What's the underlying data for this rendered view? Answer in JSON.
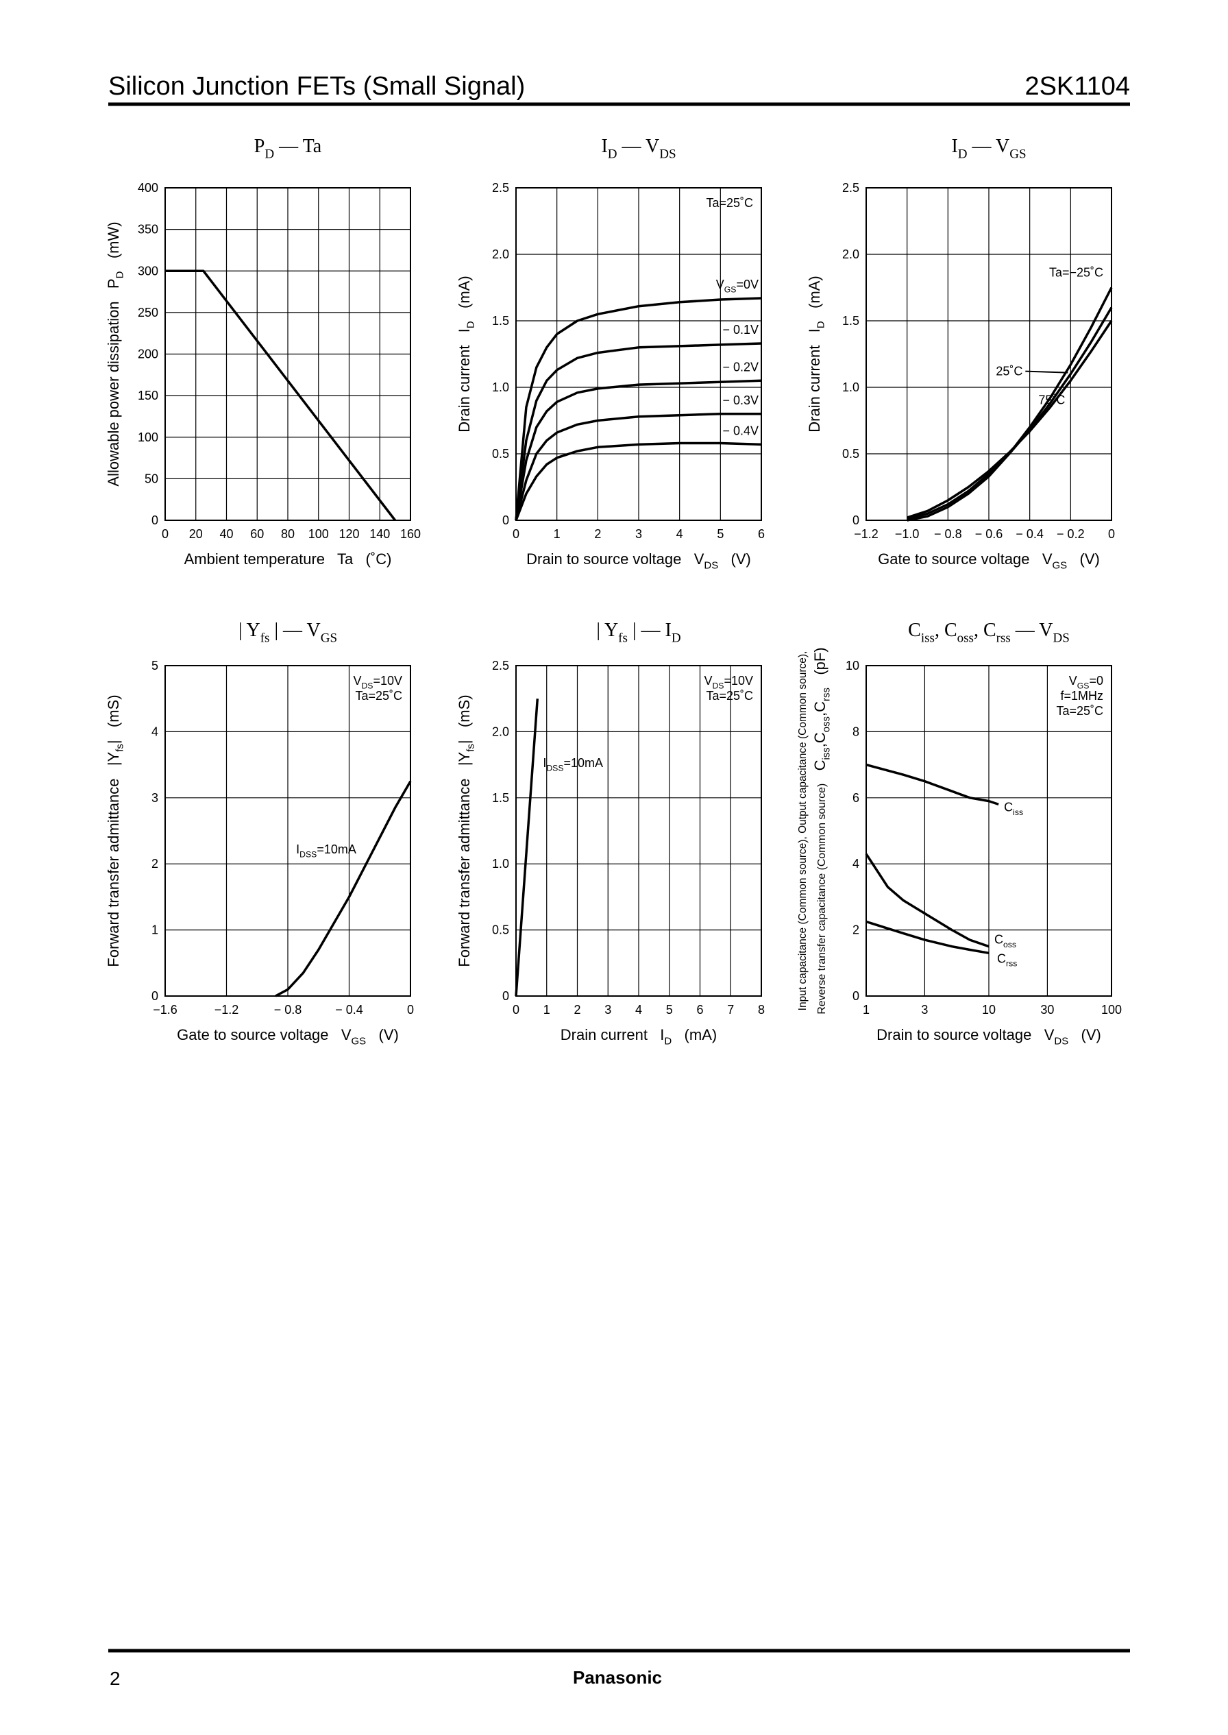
{
  "header": {
    "title": "Silicon Junction FETs (Small Signal)",
    "part_number": "2SK1104"
  },
  "footer": {
    "page": "2",
    "brand": "Panasonic"
  },
  "chart_data": [
    {
      "type": "line",
      "title": [
        {
          "text": "P"
        },
        {
          "text": "D",
          "sub": true
        },
        {
          "text": " — Ta"
        }
      ],
      "x_label": "Ambient temperature   Ta   (˚C)",
      "y_label": [
        {
          "text": "Allowable power dissipation   P"
        },
        {
          "text": "D",
          "sub": true
        },
        {
          "text": "   (mW)"
        }
      ],
      "x": [
        0,
        25,
        150
      ],
      "values": [
        300,
        300,
        0
      ],
      "color": "#000000",
      "xlim": [
        0,
        160
      ],
      "xticks": [
        0,
        20,
        40,
        60,
        80,
        100,
        120,
        140,
        160
      ],
      "ylim": [
        0,
        400
      ],
      "yticks": [
        0,
        50,
        100,
        150,
        200,
        250,
        300,
        350,
        400
      ],
      "grid": true
    },
    {
      "type": "line",
      "title": [
        {
          "text": "I"
        },
        {
          "text": "D",
          "sub": true
        },
        {
          "text": " — V"
        },
        {
          "text": "DS",
          "sub": true
        }
      ],
      "x_label": [
        {
          "text": "Drain to source voltage   V"
        },
        {
          "text": "DS",
          "sub": true
        },
        {
          "text": "   (V)"
        }
      ],
      "y_label": [
        {
          "text": "Drain current   I"
        },
        {
          "text": "D",
          "sub": true
        },
        {
          "text": "   (mA)"
        }
      ],
      "annotations": [
        "Ta=25˚C"
      ],
      "x": [
        0,
        0.25,
        0.5,
        0.75,
        1,
        1.5,
        2,
        3,
        4,
        5,
        6
      ],
      "series": [
        {
          "name": [
            {
              "text": "V"
            },
            {
              "text": "GS",
              "sub": true
            },
            {
              "text": "=0V"
            }
          ],
          "color": "#000000",
          "values": [
            0,
            0.85,
            1.15,
            1.3,
            1.4,
            1.5,
            1.55,
            1.61,
            1.64,
            1.66,
            1.67
          ]
        },
        {
          "name": "− 0.1V",
          "color": "#000000",
          "values": [
            0,
            0.6,
            0.9,
            1.05,
            1.13,
            1.22,
            1.26,
            1.3,
            1.31,
            1.32,
            1.33
          ]
        },
        {
          "name": "− 0.2V",
          "color": "#000000",
          "values": [
            0,
            0.45,
            0.7,
            0.82,
            0.89,
            0.96,
            0.99,
            1.02,
            1.03,
            1.04,
            1.05
          ]
        },
        {
          "name": "− 0.3V",
          "color": "#000000",
          "values": [
            0,
            0.3,
            0.5,
            0.6,
            0.66,
            0.72,
            0.75,
            0.78,
            0.79,
            0.8,
            0.8
          ]
        },
        {
          "name": "− 0.4V",
          "color": "#000000",
          "values": [
            0,
            0.2,
            0.33,
            0.42,
            0.47,
            0.52,
            0.55,
            0.57,
            0.58,
            0.58,
            0.57
          ]
        }
      ],
      "xlim": [
        0,
        6
      ],
      "xticks": [
        0,
        1,
        2,
        3,
        4,
        5,
        6
      ],
      "ylim": [
        0,
        2.5
      ],
      "yticks": [
        0,
        0.5,
        {
          "value": 1,
          "label": "1.0"
        },
        1.5,
        {
          "value": 2,
          "label": "2.0"
        },
        2.5
      ],
      "grid": true
    },
    {
      "type": "line",
      "title": [
        {
          "text": "I"
        },
        {
          "text": "D",
          "sub": true
        },
        {
          "text": " — V"
        },
        {
          "text": "GS",
          "sub": true
        }
      ],
      "x_label": [
        {
          "text": "Gate to source voltage   V"
        },
        {
          "text": "GS",
          "sub": true
        },
        {
          "text": "   (V)"
        }
      ],
      "y_label": [
        {
          "text": "Drain current   I"
        },
        {
          "text": "D",
          "sub": true
        },
        {
          "text": "   (mA)"
        }
      ],
      "x": [
        -1,
        -0.9,
        -0.8,
        -0.7,
        -0.6,
        -0.5,
        -0.4,
        -0.3,
        -0.2,
        -0.1,
        0
      ],
      "series": [
        {
          "name": "Ta=−25˚C",
          "color": "#000000",
          "values": [
            0,
            0.03,
            0.1,
            0.2,
            0.33,
            0.5,
            0.7,
            0.92,
            1.17,
            1.45,
            1.75
          ]
        },
        {
          "name": "25˚C",
          "color": "#000000",
          "values": [
            0.01,
            0.05,
            0.12,
            0.22,
            0.35,
            0.5,
            0.68,
            0.88,
            1.1,
            1.34,
            1.6
          ]
        },
        {
          "name": "75˚C",
          "color": "#000000",
          "values": [
            0.02,
            0.07,
            0.15,
            0.25,
            0.37,
            0.51,
            0.67,
            0.85,
            1.05,
            1.27,
            1.5
          ]
        }
      ],
      "xlim": [
        -1.2,
        0
      ],
      "xticks": [
        {
          "value": -1.2,
          "label": "−1.2"
        },
        {
          "value": -1,
          "label": "−1.0"
        },
        {
          "value": -0.8,
          "label": "− 0.8"
        },
        {
          "value": -0.6,
          "label": "− 0.6"
        },
        {
          "value": -0.4,
          "label": "− 0.4"
        },
        {
          "value": -0.2,
          "label": "− 0.2"
        },
        0
      ],
      "ylim": [
        0,
        2.5
      ],
      "yticks": [
        0,
        0.5,
        {
          "value": 1,
          "label": "1.0"
        },
        1.5,
        {
          "value": 2,
          "label": "2.0"
        },
        2.5
      ],
      "grid": true
    },
    {
      "type": "line",
      "title": [
        {
          "text": "| Y"
        },
        {
          "text": "fs",
          "sub": true
        },
        {
          "text": " | — V"
        },
        {
          "text": "GS",
          "sub": true
        }
      ],
      "x_label": [
        {
          "text": "Gate to source voltage   V"
        },
        {
          "text": "GS",
          "sub": true
        },
        {
          "text": "   (V)"
        }
      ],
      "y_label": [
        {
          "text": "Forward transfer admittance   |Y"
        },
        {
          "text": "fs",
          "sub": true
        },
        {
          "text": "|   (mS)"
        }
      ],
      "annotations": [
        [
          {
            "text": "V"
          },
          {
            "text": "DS",
            "sub": true
          },
          {
            "text": "=10V"
          }
        ],
        "Ta=25˚C"
      ],
      "x": [
        -0.88,
        -0.8,
        -0.7,
        -0.6,
        -0.5,
        -0.4,
        -0.3,
        -0.2,
        -0.1,
        0
      ],
      "series": [
        {
          "name": [
            {
              "text": "I"
            },
            {
              "text": "DSS",
              "sub": true
            },
            {
              "text": "=10mA"
            }
          ],
          "color": "#000000",
          "values": [
            0,
            0.1,
            0.35,
            0.7,
            1.1,
            1.5,
            1.95,
            2.4,
            2.85,
            3.25
          ]
        }
      ],
      "xlim": [
        -1.6,
        0
      ],
      "xticks": [
        {
          "value": -1.6,
          "label": "−1.6"
        },
        {
          "value": -1.2,
          "label": "−1.2"
        },
        {
          "value": -0.8,
          "label": "− 0.8"
        },
        {
          "value": -0.4,
          "label": "− 0.4"
        },
        0
      ],
      "ylim": [
        0,
        5
      ],
      "yticks": [
        0,
        1,
        2,
        3,
        4,
        5
      ],
      "grid": true
    },
    {
      "type": "line",
      "title": [
        {
          "text": "| Y"
        },
        {
          "text": "fs",
          "sub": true
        },
        {
          "text": " | — I"
        },
        {
          "text": "D",
          "sub": true
        }
      ],
      "x_label": [
        {
          "text": "Drain current   I"
        },
        {
          "text": "D",
          "sub": true
        },
        {
          "text": "   (mA)"
        }
      ],
      "y_label": [
        {
          "text": "Forward transfer admittance   |Y"
        },
        {
          "text": "fs",
          "sub": true
        },
        {
          "text": "|   (mS)"
        }
      ],
      "annotations": [
        [
          {
            "text": "V"
          },
          {
            "text": "DS",
            "sub": true
          },
          {
            "text": "=10V"
          }
        ],
        "Ta=25˚C"
      ],
      "x": [
        0,
        0.7
      ],
      "series": [
        {
          "name": [
            {
              "text": "I"
            },
            {
              "text": "DSS",
              "sub": true
            },
            {
              "text": "=10mA"
            }
          ],
          "color": "#000000",
          "values": [
            0,
            2.25
          ]
        }
      ],
      "xlim": [
        0,
        8
      ],
      "xticks": [
        0,
        1,
        2,
        3,
        4,
        5,
        6,
        7,
        8
      ],
      "ylim": [
        0,
        2.5
      ],
      "yticks": [
        0,
        0.5,
        {
          "value": 1,
          "label": "1.0"
        },
        1.5,
        {
          "value": 2,
          "label": "2.0"
        },
        2.5
      ],
      "grid": true
    },
    {
      "type": "line",
      "title": [
        {
          "text": "C"
        },
        {
          "text": "iss",
          "sub": true
        },
        {
          "text": ", C"
        },
        {
          "text": "oss",
          "sub": true
        },
        {
          "text": ", C"
        },
        {
          "text": "rss",
          "sub": true
        },
        {
          "text": " — V"
        },
        {
          "text": "DS",
          "sub": true
        }
      ],
      "x_label": [
        {
          "text": "Drain to source voltage   V"
        },
        {
          "text": "DS",
          "sub": true
        },
        {
          "text": "   (V)"
        }
      ],
      "y_label_note": "Input capacitance (Common source), Output capacitance (Common source),",
      "y_label": [
        {
          "text": "Reverse transfer capacitance (Common source)",
          "small": true
        },
        {
          "text": "   C"
        },
        {
          "text": "iss",
          "sub": true
        },
        {
          "text": ",C"
        },
        {
          "text": "oss",
          "sub": true
        },
        {
          "text": ",C"
        },
        {
          "text": "rss",
          "sub": true
        },
        {
          "text": "   (pF)"
        }
      ],
      "annotations": [
        [
          {
            "text": "V"
          },
          {
            "text": "GS",
            "sub": true
          },
          {
            "text": "=0"
          }
        ],
        "f=1MHz",
        "Ta=25˚C"
      ],
      "xscale": "log",
      "series": [
        {
          "name": [
            {
              "text": "C"
            },
            {
              "text": "iss",
              "sub": true
            }
          ],
          "color": "#000000",
          "x": [
            1,
            2,
            3,
            5,
            7,
            10,
            12
          ],
          "values": [
            7,
            6.7,
            6.5,
            6.2,
            6,
            5.9,
            5.8
          ]
        },
        {
          "name": [
            {
              "text": "C"
            },
            {
              "text": "oss",
              "sub": true
            }
          ],
          "color": "#000000",
          "x": [
            1,
            1.5,
            2,
            3,
            5,
            7,
            10
          ],
          "values": [
            4.3,
            3.3,
            2.9,
            2.5,
            2,
            1.7,
            1.5
          ]
        },
        {
          "name": [
            {
              "text": "C"
            },
            {
              "text": "rss",
              "sub": true
            }
          ],
          "color": "#000000",
          "x": [
            1,
            2,
            3,
            5,
            7,
            10
          ],
          "values": [
            2.25,
            1.9,
            1.7,
            1.5,
            1.4,
            1.3
          ]
        }
      ],
      "xlim": [
        1,
        100
      ],
      "xticks": [
        1,
        3,
        10,
        30,
        100
      ],
      "ylim": [
        0,
        10
      ],
      "yticks": [
        0,
        2,
        4,
        6,
        8,
        10
      ],
      "grid": true
    }
  ]
}
